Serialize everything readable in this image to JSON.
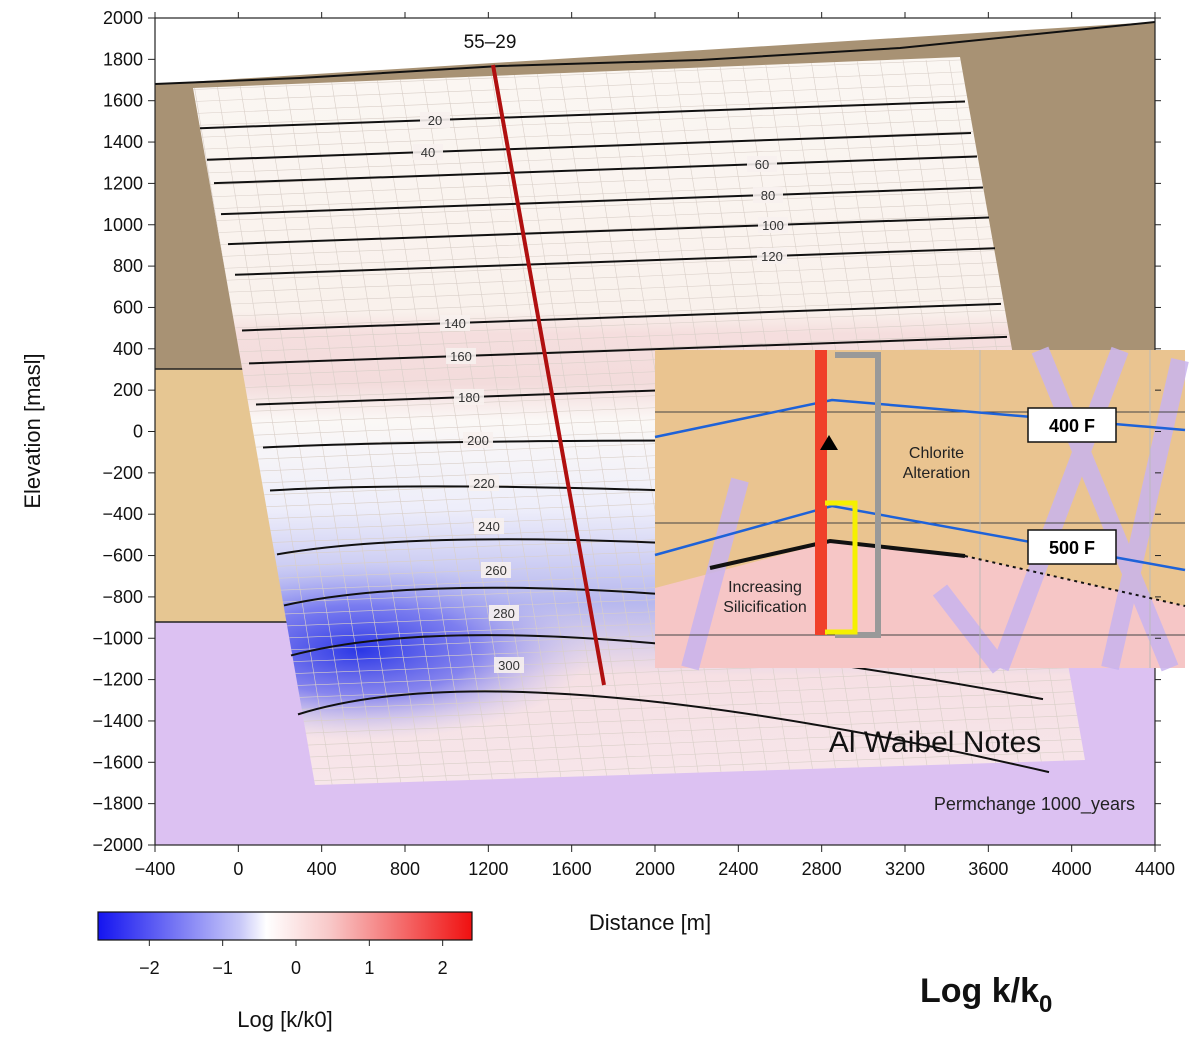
{
  "chart_data": {
    "type": "section",
    "well": "55–29",
    "x_label": "Distance [m]",
    "y_label": "Elevation [masl]",
    "xlim": [
      -400,
      4400
    ],
    "ylim": [
      -2000,
      2000
    ],
    "xticks": [
      {
        "value": -400,
        "label": "−400"
      },
      0,
      400,
      800,
      1200,
      1600,
      2000,
      2400,
      2800,
      3200,
      3600,
      4000,
      4400
    ],
    "yticks": [
      2000,
      1800,
      1600,
      1400,
      1200,
      1000,
      800,
      600,
      400,
      200,
      0,
      {
        "value": -200,
        "label": "−200"
      },
      {
        "value": -400,
        "label": "−400"
      },
      {
        "value": -600,
        "label": "−600"
      },
      {
        "value": -800,
        "label": "−800"
      },
      {
        "value": -1000,
        "label": "−1000"
      },
      {
        "value": -1200,
        "label": "−1200"
      },
      {
        "value": -1400,
        "label": "−1400"
      },
      {
        "value": -1600,
        "label": "−1600"
      },
      {
        "value": -1800,
        "label": "−1800"
      },
      {
        "value": -2000,
        "label": "−2000"
      }
    ],
    "contours": [
      20,
      40,
      60,
      80,
      100,
      120,
      140,
      160,
      180,
      200,
      220,
      240,
      260,
      280,
      300
    ],
    "annotation": "Permchange 1000_years",
    "colorbar": {
      "label": "Log [k/k0]",
      "clim": [
        -2.7,
        2.4
      ],
      "ticks": [
        {
          "value": -2,
          "label": "−2"
        },
        {
          "value": -1,
          "label": "−1"
        },
        0,
        1,
        2
      ]
    },
    "inset": {
      "labels": [
        "400 F",
        "500 F",
        "Chlorite Alteration",
        "Increasing Silicification"
      ]
    },
    "notes": "Al Waibel Notes",
    "big_label": {
      "text": "Log k/k",
      "subscript": "0"
    }
  }
}
